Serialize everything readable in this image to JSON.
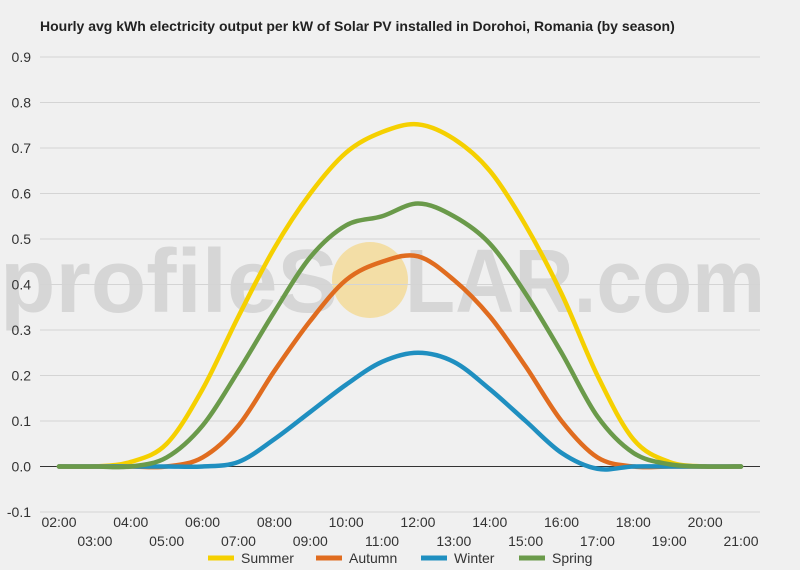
{
  "chart_data": {
    "type": "line",
    "title": "Hourly avg kWh electricity output per kW of Solar PV installed in Dorohoi, Romania (by season)",
    "xlabel": "",
    "ylabel": "",
    "x": [
      "02:00",
      "03:00",
      "04:00",
      "05:00",
      "06:00",
      "07:00",
      "08:00",
      "09:00",
      "10:00",
      "11:00",
      "12:00",
      "13:00",
      "14:00",
      "15:00",
      "16:00",
      "17:00",
      "18:00",
      "19:00",
      "20:00",
      "21:00"
    ],
    "yticks": [
      "-0.1",
      "0.0",
      "0.1",
      "0.2",
      "0.3",
      "0.4",
      "0.5",
      "0.6",
      "0.7",
      "0.8",
      "0.9"
    ],
    "ylim": [
      -0.1,
      0.9
    ],
    "grid": true,
    "legend": "bottom",
    "series": [
      {
        "name": "Summer",
        "color": "#f5d000",
        "values": [
          0,
          0,
          0.01,
          0.05,
          0.17,
          0.33,
          0.48,
          0.6,
          0.69,
          0.735,
          0.752,
          0.72,
          0.65,
          0.53,
          0.38,
          0.2,
          0.06,
          0.01,
          0,
          0
        ]
      },
      {
        "name": "Autumn",
        "color": "#e06c1f",
        "values": [
          0,
          0,
          0,
          0,
          0.02,
          0.09,
          0.21,
          0.32,
          0.41,
          0.45,
          0.462,
          0.41,
          0.33,
          0.22,
          0.1,
          0.02,
          0,
          0,
          0,
          0
        ]
      },
      {
        "name": "Winter",
        "color": "#1f8fc0",
        "values": [
          0,
          0,
          0,
          0,
          0,
          0.01,
          0.06,
          0.12,
          0.18,
          0.23,
          0.25,
          0.23,
          0.17,
          0.1,
          0.03,
          -0.005,
          0,
          0,
          0,
          0
        ]
      },
      {
        "name": "Spring",
        "color": "#6a9a4a",
        "values": [
          0,
          0,
          0,
          0.02,
          0.09,
          0.21,
          0.34,
          0.46,
          0.53,
          0.55,
          0.578,
          0.55,
          0.49,
          0.38,
          0.25,
          0.11,
          0.03,
          0.005,
          0,
          0
        ]
      }
    ]
  },
  "watermark": {
    "text_left": "profileS",
    "text_right": "LAR.com"
  }
}
